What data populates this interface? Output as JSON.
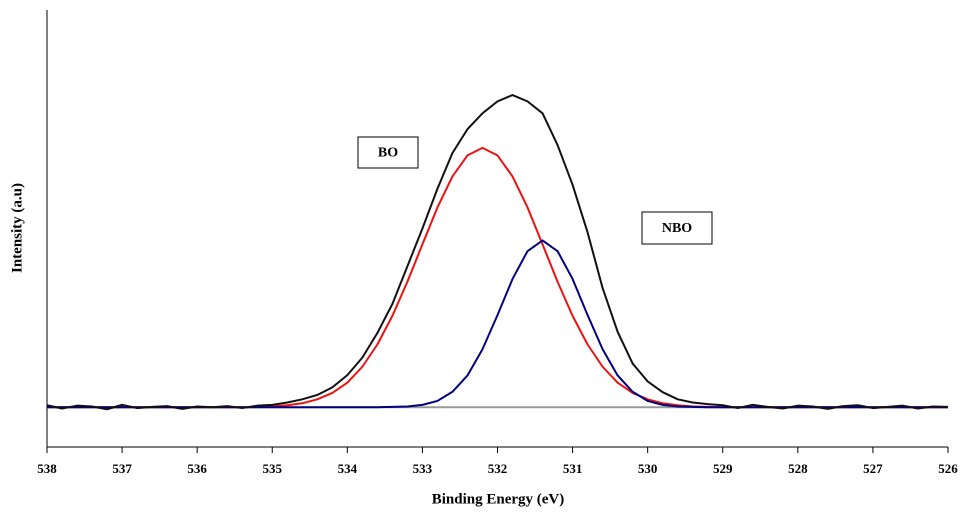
{
  "chart_data": {
    "type": "line",
    "xlabel": "Binding Energy (eV)",
    "ylabel": "Intensity (a.u)",
    "x": [
      538,
      537.8,
      537.6,
      537.4,
      537.2,
      537,
      536.8,
      536.6,
      536.4,
      536.2,
      536,
      535.8,
      535.6,
      535.4,
      535.2,
      535,
      534.8,
      534.6,
      534.4,
      534.2,
      534,
      533.8,
      533.6,
      533.4,
      533.2,
      533,
      532.8,
      532.6,
      532.4,
      532.2,
      532,
      531.8,
      531.6,
      531.4,
      531.2,
      531,
      530.8,
      530.6,
      530.4,
      530.2,
      530,
      529.8,
      529.6,
      529.4,
      529.2,
      529,
      528.8,
      528.6,
      528.4,
      528.2,
      528,
      527.8,
      527.6,
      527.4,
      527.2,
      527,
      526.8,
      526.6,
      526.4,
      526.2,
      526
    ],
    "series": [
      {
        "color": "#999999",
        "values": [
          0,
          0,
          0,
          0,
          0,
          0,
          0,
          0,
          0,
          0,
          0,
          0,
          0,
          0,
          0,
          0,
          0,
          0,
          0,
          0,
          0,
          0,
          0,
          0,
          0,
          0,
          0,
          0,
          0,
          0,
          0,
          0,
          0,
          0,
          0,
          0,
          0,
          0,
          0,
          0,
          0,
          0,
          0,
          0,
          0,
          0,
          0,
          0,
          0,
          0,
          0,
          0,
          0,
          0,
          0,
          0,
          0,
          0,
          0,
          0,
          0
        ]
      },
      {
        "color": "#ee1111",
        "values": [
          0,
          0,
          0,
          0,
          0,
          0,
          0,
          0,
          0,
          0,
          0,
          0,
          0,
          0,
          0.1,
          0.2,
          0.5,
          1.0,
          2.0,
          3.6,
          6.2,
          10.2,
          15.8,
          23.0,
          31.6,
          41.0,
          50.3,
          58.1,
          63.4,
          65.3,
          63.4,
          58.1,
          50.3,
          41.0,
          31.6,
          23.0,
          15.8,
          10.2,
          6.2,
          3.6,
          2.0,
          1.0,
          0.5,
          0.2,
          0.1,
          0,
          0,
          0,
          0,
          0,
          0,
          0,
          0,
          0,
          0,
          0,
          0,
          0,
          0,
          0,
          0
        ]
      },
      {
        "color": "#000080",
        "values": [
          0,
          0,
          0,
          0,
          0,
          0,
          0,
          0,
          0,
          0,
          0,
          0,
          0,
          0,
          0,
          0,
          0,
          0,
          0,
          0,
          0,
          0,
          0,
          0.1,
          0.2,
          0.6,
          1.6,
          3.9,
          8.0,
          14.6,
          23.2,
          32.3,
          39.3,
          42,
          39.3,
          32.3,
          23.2,
          14.6,
          8.0,
          3.9,
          1.6,
          0.6,
          0.2,
          0.1,
          0,
          0,
          0,
          0,
          0,
          0,
          0,
          0,
          0,
          0,
          0,
          0,
          0,
          0,
          0,
          0,
          0
        ]
      },
      {
        "color": "#111111",
        "values": [
          0.5,
          -0.3,
          0.4,
          0.2,
          -0.5,
          0.6,
          -0.2,
          0.1,
          0.3,
          -0.4,
          0.2,
          0.0,
          0.3,
          -0.2,
          0.4,
          0.6,
          1.2,
          2.0,
          3.1,
          5.0,
          8.1,
          12.5,
          18.7,
          26.0,
          35.5,
          45,
          55,
          64,
          70,
          74,
          77,
          78.6,
          77,
          74,
          66,
          56,
          44,
          30,
          19,
          11,
          6.5,
          3.8,
          2.0,
          1.2,
          0.8,
          0.5,
          -0.2,
          0.6,
          0.1,
          -0.3,
          0.4,
          0.2,
          -0.4,
          0.3,
          0.5,
          -0.2,
          0.1,
          0.4,
          -0.3,
          0.2,
          0.1
        ]
      }
    ],
    "xlim": [
      538,
      526
    ],
    "xticks": [
      538,
      537,
      536,
      535,
      534,
      533,
      532,
      531,
      530,
      529,
      528,
      527,
      526
    ],
    "ylim": [
      -10,
      100
    ],
    "annotations": [
      {
        "text": "BO"
      },
      {
        "text": "NBO"
      }
    ]
  }
}
